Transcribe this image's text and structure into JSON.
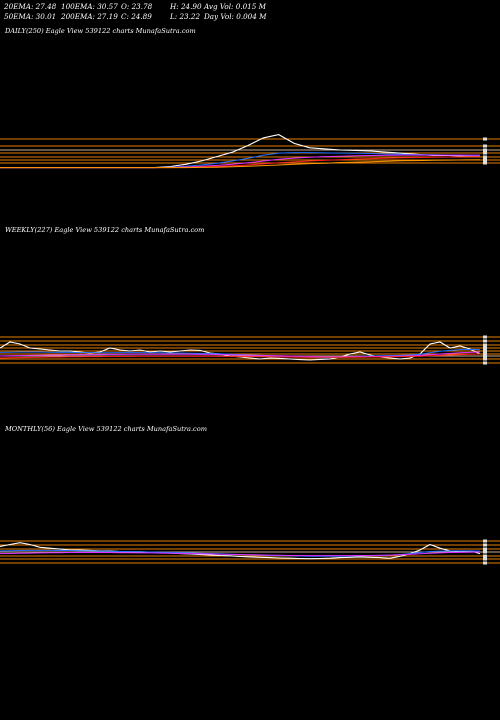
{
  "stats": {
    "row1": [
      "20EMA: 27.48",
      "100EMA: 30.57",
      "O: 23.78",
      "H: 24.90",
      "Avg Vol: 0.015  M"
    ],
    "row2": [
      "50EMA: 30.01",
      "200EMA: 27.19",
      "C: 24.89",
      "L: 23.22",
      "Day Vol: 0.004  M"
    ]
  },
  "panels": [
    {
      "title": "DAILY(250) Eagle   View  539122  charts MunafaSutra.com"
    },
    {
      "title": "WEEKLY(227) Eagle   View  539122  charts MunafaSutra.com"
    },
    {
      "title": "MONTHLY(56) Eagle   View  539122  charts MunafaSutra.com"
    }
  ],
  "colors": {
    "background": "#000000",
    "price": "#ffffff",
    "grid": "#ff8c00",
    "ema_blue": "#1e6fff",
    "ema_red": "#ff2020",
    "ema_magenta": "#e030ff",
    "ema_green": "#3cb043",
    "ema_orange": "#ff9a00"
  },
  "chart_data": [
    {
      "type": "line",
      "title": "DAILY(250) Eagle View 539122 charts MunafaSutra.com",
      "x": [
        0,
        8,
        16,
        24,
        32,
        40,
        48,
        56,
        64,
        72,
        80,
        88,
        96,
        104,
        112,
        120,
        128,
        136,
        144,
        152,
        160,
        168,
        176,
        184,
        192,
        200,
        208,
        216,
        224,
        232,
        240,
        248
      ],
      "series": [
        {
          "values": [
            20,
            20,
            20,
            20,
            20,
            20,
            20,
            20,
            20,
            20,
            20,
            20.5,
            21.5,
            23,
            25,
            27,
            30,
            33.5,
            35,
            31,
            29,
            28.5,
            28,
            27.8,
            27.5,
            27,
            26.5,
            26,
            25.5,
            25.5,
            25.2,
            25
          ]
        },
        {
          "values": [
            20,
            20,
            20,
            20,
            20,
            20,
            20,
            20,
            20,
            20,
            20,
            20.2,
            20.6,
            21.2,
            22,
            23,
            24.2,
            25.6,
            26.6,
            26.8,
            26.8,
            26.7,
            26.6,
            26.5,
            26.4,
            26.2,
            26,
            25.9,
            25.8,
            25.7,
            25.6,
            25.5
          ]
        },
        {
          "values": [
            20,
            20,
            20,
            20,
            20,
            20,
            20,
            20,
            20,
            20,
            20,
            20.1,
            20.3,
            20.6,
            21,
            21.5,
            22.2,
            23,
            23.8,
            24.3,
            24.7,
            25,
            25.2,
            25.4,
            25.5,
            25.6,
            25.7,
            25.7,
            25.7,
            25.7,
            25.7,
            25.7
          ]
        },
        {
          "values": [
            20,
            20,
            20,
            20,
            20,
            20,
            20,
            20,
            20,
            20,
            20,
            20,
            20.1,
            20.3,
            20.5,
            20.8,
            21.2,
            21.7,
            22.2,
            22.6,
            23,
            23.3,
            23.6,
            23.9,
            24.1,
            24.3,
            24.5,
            24.6,
            24.7,
            24.8,
            24.9,
            25
          ]
        },
        {
          "values": [
            20,
            20,
            20,
            20,
            20,
            20,
            20,
            20,
            20,
            20,
            20,
            20,
            20,
            20.1,
            20.2,
            20.4,
            20.6,
            20.9,
            21.2,
            21.5,
            21.8,
            22,
            22.3,
            22.5,
            22.7,
            22.9,
            23.1,
            23.2,
            23.3,
            23.4,
            23.5,
            23.6
          ]
        }
      ],
      "ylim": [
        18,
        38
      ]
    },
    {
      "type": "line",
      "title": "WEEKLY(227) Eagle View 539122 charts MunafaSutra.com",
      "x": [
        0,
        10,
        20,
        30,
        40,
        50,
        60,
        70,
        80,
        90,
        100,
        110,
        120,
        130,
        140,
        150,
        160,
        170,
        180,
        190,
        200,
        210,
        220,
        230,
        240,
        250,
        260,
        270,
        280,
        290,
        300,
        310,
        320,
        330,
        340,
        350,
        360,
        370,
        380,
        390,
        400,
        410,
        420,
        430,
        440,
        450,
        460,
        470,
        480
      ],
      "series": [
        {
          "values": [
            30,
            33,
            32,
            30,
            29.5,
            29,
            28.5,
            28.5,
            28,
            27.5,
            28,
            30,
            29,
            28.5,
            29,
            28,
            28.5,
            28,
            28.5,
            29,
            28.8,
            27.5,
            27,
            26,
            25.5,
            25,
            24.5,
            25,
            24.8,
            24.5,
            24.2,
            24,
            24.3,
            24.5,
            25.5,
            27,
            28,
            26.5,
            25.5,
            25,
            24.5,
            25,
            27,
            32,
            33,
            30,
            31,
            29.5,
            27
          ]
        },
        {
          "values": [
            27.8,
            27.9,
            28,
            28,
            28,
            27.9,
            27.8,
            27.8,
            27.7,
            27.7,
            27.6,
            27.6,
            27.7,
            27.7,
            27.7,
            27.6,
            27.6,
            27.5,
            27.5,
            27.4,
            27.3,
            27.2,
            27.1,
            26.9,
            26.7,
            26.5,
            26.3,
            26.1,
            25.9,
            25.7,
            25.5,
            25.3,
            25.2,
            25.2,
            25.3,
            25.5,
            25.8,
            26,
            26.1,
            26.2,
            26.3,
            26.5,
            26.9,
            27.6,
            28.4,
            28.8,
            29.2,
            29.3,
            29.2
          ]
        },
        {
          "values": [
            26,
            26.1,
            26.2,
            26.3,
            26.4,
            26.5,
            26.5,
            26.6,
            26.6,
            26.7,
            26.7,
            26.8,
            26.8,
            26.9,
            26.9,
            26.9,
            26.9,
            26.9,
            26.9,
            26.9,
            26.8,
            26.8,
            26.7,
            26.6,
            26.5,
            26.4,
            26.3,
            26.2,
            26.1,
            26,
            25.9,
            25.8,
            25.7,
            25.6,
            25.6,
            25.6,
            25.6,
            25.7,
            25.8,
            25.9,
            26,
            26.1,
            26.3,
            26.6,
            27,
            27.3,
            27.6,
            27.8,
            28
          ]
        },
        {
          "values": [
            25,
            25.1,
            25.2,
            25.3,
            25.4,
            25.5,
            25.5,
            25.6,
            25.6,
            25.7,
            25.7,
            25.8,
            25.8,
            25.8,
            25.9,
            25.9,
            25.9,
            25.9,
            25.9,
            25.9,
            25.9,
            25.9,
            25.8,
            25.8,
            25.7,
            25.7,
            25.6,
            25.6,
            25.5,
            25.5,
            25.4,
            25.4,
            25.4,
            25.4,
            25.4,
            25.4,
            25.4,
            25.5,
            25.5,
            25.6,
            25.7,
            25.8,
            25.9,
            26.1,
            26.3,
            26.5,
            26.7,
            26.9,
            27
          ]
        }
      ],
      "ylim": [
        18,
        40
      ]
    },
    {
      "type": "line",
      "title": "MONTHLY(56) Eagle View 539122 charts MunafaSutra.com",
      "x": [
        0,
        10,
        20,
        30,
        40,
        50,
        60,
        70,
        80,
        90,
        100,
        110,
        120,
        130,
        140,
        150,
        160,
        170,
        180,
        190,
        200,
        210,
        220,
        230,
        240,
        250,
        260,
        270,
        280,
        290,
        300,
        310,
        320,
        330,
        340,
        350,
        360,
        370,
        380,
        390,
        400,
        410,
        420,
        430,
        440,
        450,
        460,
        470,
        480
      ],
      "series": [
        {
          "values": [
            31,
            32,
            33,
            32,
            30.5,
            30,
            29.5,
            29,
            29,
            28.8,
            28.5,
            28.5,
            28.2,
            28,
            28,
            27.8,
            27.5,
            27.3,
            27,
            26.8,
            26.5,
            26.3,
            26,
            25.8,
            25.5,
            25.2,
            25,
            24.8,
            24.6,
            24.5,
            24.3,
            24.2,
            24.3,
            24.5,
            24.8,
            25,
            25.2,
            25,
            24.8,
            24.5,
            25.5,
            27,
            29,
            32,
            30,
            28.5,
            28,
            28.5,
            27
          ]
        },
        {
          "values": [
            28.5,
            28.6,
            28.7,
            28.8,
            28.8,
            28.8,
            28.7,
            28.7,
            28.6,
            28.5,
            28.4,
            28.3,
            28.2,
            28.1,
            28,
            27.9,
            27.8,
            27.7,
            27.5,
            27.4,
            27.2,
            27,
            26.9,
            26.7,
            26.5,
            26.3,
            26.2,
            26,
            25.9,
            25.8,
            25.7,
            25.6,
            25.6,
            25.6,
            25.6,
            25.7,
            25.8,
            25.9,
            26,
            26.2,
            26.5,
            27,
            27.6,
            28.2,
            28.4,
            28.5,
            28.5,
            28.5,
            28.4
          ]
        },
        {
          "values": [
            27,
            27.1,
            27.2,
            27.3,
            27.4,
            27.5,
            27.5,
            27.6,
            27.6,
            27.6,
            27.6,
            27.6,
            27.5,
            27.5,
            27.4,
            27.4,
            27.3,
            27.2,
            27.1,
            27,
            26.9,
            26.8,
            26.7,
            26.6,
            26.5,
            26.4,
            26.3,
            26.2,
            26.1,
            26,
            26,
            25.9,
            25.9,
            25.9,
            25.9,
            25.9,
            26,
            26,
            26.1,
            26.2,
            26.4,
            26.6,
            26.9,
            27.2,
            27.4,
            27.6,
            27.7,
            27.8,
            27.9
          ]
        }
      ],
      "ylim": [
        18,
        40
      ]
    }
  ]
}
